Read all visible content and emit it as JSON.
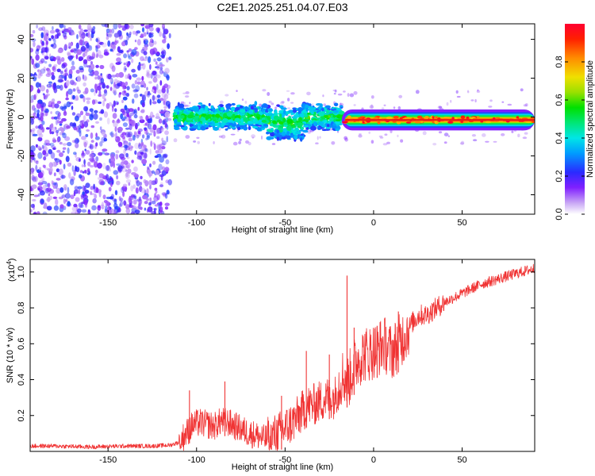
{
  "title": "C2E1.2025.251.04.07.E03",
  "colors": {
    "line": "#f03333",
    "frame": "#000000",
    "spectrum_ridge": "#e81c1c"
  },
  "chart_data": [
    {
      "type": "heatmap",
      "xlabel": "Height of straight line (km)",
      "ylabel": "Frequency (Hz)",
      "xlim": [
        -194,
        91
      ],
      "ylim": [
        -50,
        48
      ],
      "xticks": [
        -150,
        -100,
        -50,
        0,
        50
      ],
      "xtick_labels": [
        "-150",
        "-100",
        "-50",
        "0",
        "50"
      ],
      "yticks": [
        -40,
        -20,
        0,
        20,
        40
      ],
      "ytick_labels": [
        "-40",
        "-20",
        "0",
        "20",
        "40"
      ],
      "colorbar": {
        "label": "Normalized spectral amplitude",
        "range": [
          0,
          1
        ],
        "ticks": [
          0.0,
          0.2,
          0.4,
          0.6,
          0.8
        ],
        "tick_labels": [
          "0.0",
          "0.2",
          "0.4",
          "0.6",
          "0.8"
        ]
      },
      "regions": [
        {
          "x": [
            -194,
            -118
          ],
          "freq_range": [
            -50,
            48
          ],
          "amplitude": [
            0.05,
            0.25
          ],
          "description": "diffuse low-amplitude noise"
        },
        {
          "x": [
            -112,
            -18
          ],
          "freq_center": 0,
          "freq_halfwidth": [
            4,
            9
          ],
          "amplitude": [
            0.2,
            0.6
          ]
        },
        {
          "x": [
            -18,
            91
          ],
          "freq_center": -1.5,
          "freq_halfwidth": [
            2,
            4
          ],
          "amplitude": [
            0.7,
            1.0
          ]
        }
      ]
    },
    {
      "type": "line",
      "xlabel": "Height of straight line (km)",
      "ylabel": "SNR (10 * v/v)",
      "yscale_label": "(x10",
      "yscale_exp": "4",
      "yscale_close": ")",
      "xlim": [
        -194,
        91
      ],
      "ylim": [
        0,
        1.07
      ],
      "xticks": [
        -150,
        -100,
        -50,
        0,
        50
      ],
      "xtick_labels": [
        "-150",
        "-100",
        "-50",
        "0",
        "50"
      ],
      "yticks": [
        0.2,
        0.4,
        0.6,
        0.8,
        1.0
      ],
      "ytick_labels": [
        "0.2",
        "0.4",
        "0.6",
        "0.8",
        "1.0"
      ],
      "series": [
        {
          "name": "SNR",
          "x": [
            -194,
            -180,
            -160,
            -140,
            -125,
            -115,
            -110,
            -106,
            -102,
            -98,
            -94,
            -90,
            -86,
            -82,
            -78,
            -74,
            -70,
            -66,
            -62,
            -58,
            -54,
            -50,
            -46,
            -42,
            -38,
            -34,
            -30,
            -26,
            -22,
            -18,
            -14,
            -10,
            -6,
            -2,
            2,
            6,
            10,
            14,
            18,
            22,
            26,
            30,
            34,
            40,
            50,
            60,
            70,
            80,
            91
          ],
          "y": [
            0.03,
            0.03,
            0.025,
            0.03,
            0.03,
            0.035,
            0.05,
            0.1,
            0.15,
            0.16,
            0.15,
            0.14,
            0.17,
            0.16,
            0.14,
            0.12,
            0.1,
            0.09,
            0.07,
            0.08,
            0.1,
            0.13,
            0.16,
            0.2,
            0.25,
            0.26,
            0.28,
            0.3,
            0.3,
            0.42,
            0.4,
            0.5,
            0.54,
            0.55,
            0.57,
            0.6,
            0.55,
            0.6,
            0.66,
            0.72,
            0.76,
            0.76,
            0.79,
            0.83,
            0.88,
            0.93,
            0.96,
            0.99,
            1.02
          ]
        }
      ],
      "spikes": [
        {
          "x": -104,
          "y": 0.34
        },
        {
          "x": -84,
          "y": 0.39
        },
        {
          "x": -52,
          "y": 0.31
        },
        {
          "x": -38,
          "y": 0.56
        },
        {
          "x": -25,
          "y": 0.54
        },
        {
          "x": -15,
          "y": 0.98
        },
        {
          "x": -11,
          "y": 0.69
        },
        {
          "x": 2,
          "y": 0.7
        },
        {
          "x": 14,
          "y": 0.78
        }
      ]
    }
  ]
}
